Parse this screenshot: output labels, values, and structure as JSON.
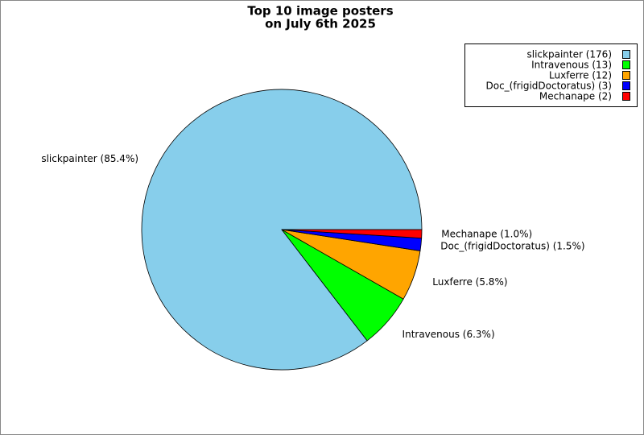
{
  "chart_data": {
    "type": "pie",
    "title": [
      "Top 10 image posters",
      "on July 6th 2025"
    ],
    "categories": [
      "slickpainter",
      "Intravenous",
      "Luxferre",
      "Doc_(frigidDoctoratus)",
      "Mechanape"
    ],
    "values": [
      176,
      13,
      12,
      3,
      2
    ],
    "legend_labels": [
      "slickpainter (176)",
      "Intravenous (13)",
      "Luxferre (12)",
      "Doc_(frigidDoctoratus) (3)",
      "Mechanape (2)"
    ],
    "value_labels": [
      "slickpainter (85.4%)",
      "Intravenous (6.3%)",
      "Luxferre (5.8%)",
      "Doc_(frigidDoctoratus) (1.5%)",
      "Mechanape (1.0%)"
    ],
    "colors": [
      "#87ceeb",
      "#00ff00",
      "#ffa500",
      "#0000ff",
      "#ff0000"
    ],
    "legend": "upper right"
  }
}
